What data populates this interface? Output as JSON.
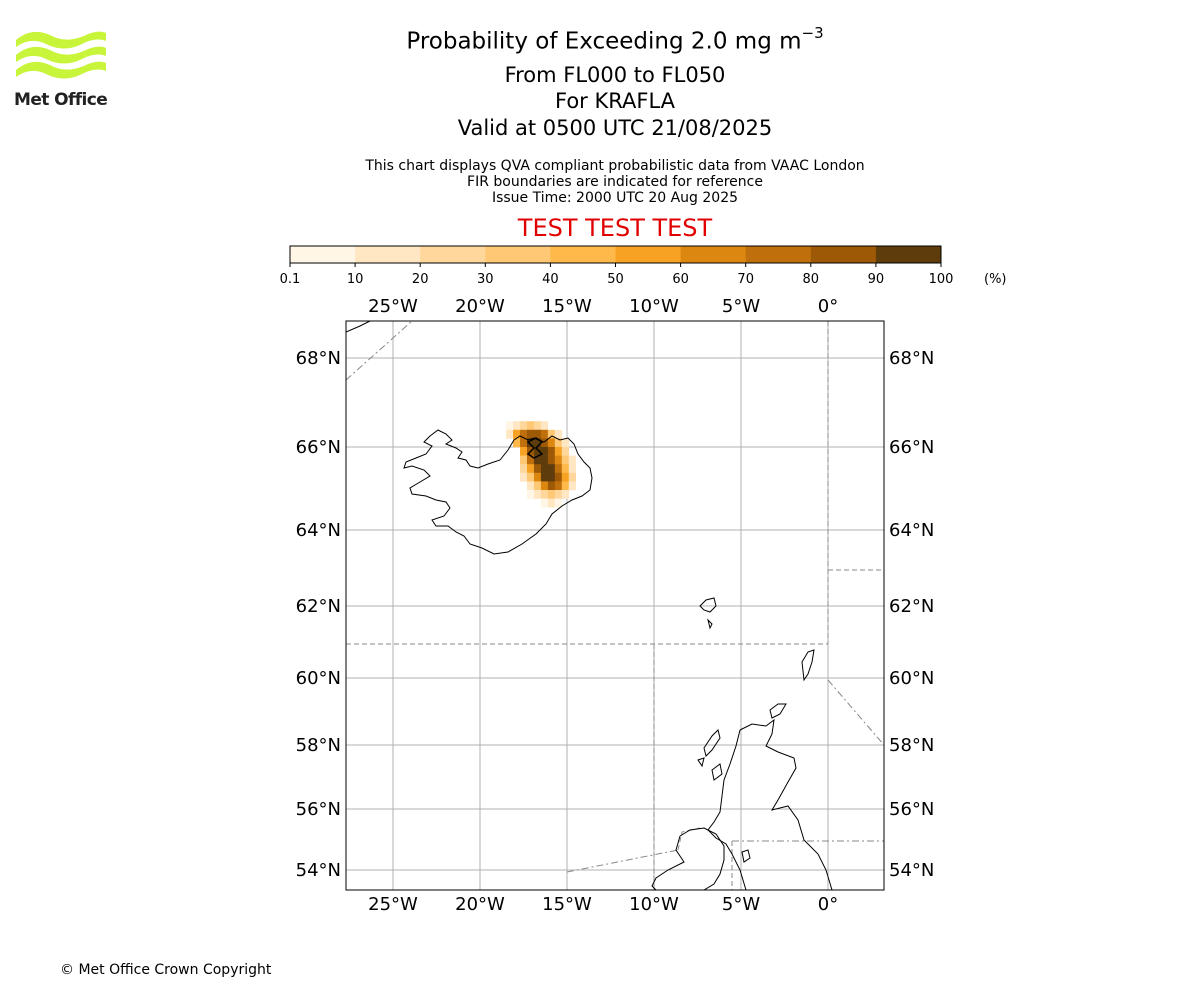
{
  "header": {
    "title_main": "Probability of Exceeding 2.0 mg m",
    "title_exponent": "−3",
    "flight_levels": "From FL000 to FL050",
    "volcano": "For KRAFLA",
    "valid_time": "Valid at 0500 UTC 21/08/2025",
    "subtitle_lines": [
      "This chart displays QVA compliant probabilistic data from VAAC London",
      "FIR boundaries are indicated for reference",
      "Issue Time: 2000 UTC 20 Aug 2025"
    ],
    "test_banner": "TEST TEST TEST"
  },
  "logo": {
    "text": "Met Office",
    "color": "#c8f53a"
  },
  "colorbar": {
    "ticks": [
      "0.1",
      "10",
      "20",
      "30",
      "40",
      "50",
      "60",
      "70",
      "80",
      "90",
      "100"
    ],
    "unit": "(%)",
    "colors": [
      "#fff6e6",
      "#ffe7c3",
      "#ffd79c",
      "#ffc874",
      "#ffb84a",
      "#f7a222",
      "#dc8810",
      "#bf700c",
      "#9e5906",
      "#5e3c0c"
    ]
  },
  "map": {
    "lon_labels": [
      "25°W",
      "20°W",
      "15°W",
      "10°W",
      "5°W",
      "0°"
    ],
    "lat_labels": [
      "68°N",
      "66°N",
      "64°N",
      "62°N",
      "60°N",
      "58°N",
      "56°N",
      "54°N"
    ],
    "gridline_color": "#b0b0b0",
    "coastline_color": "#000000",
    "fir_boundary_color": "#888888",
    "ash_probability_field": [
      {
        "lon": -18.3,
        "lat": 66.5,
        "level": 0
      },
      {
        "lon": -17.9,
        "lat": 66.5,
        "level": 1
      },
      {
        "lon": -17.5,
        "lat": 66.5,
        "level": 2
      },
      {
        "lon": -17.1,
        "lat": 66.5,
        "level": 3
      },
      {
        "lon": -16.7,
        "lat": 66.5,
        "level": 2
      },
      {
        "lon": -16.3,
        "lat": 66.5,
        "level": 1
      },
      {
        "lon": -18.3,
        "lat": 66.3,
        "level": 1
      },
      {
        "lon": -17.9,
        "lat": 66.3,
        "level": 5
      },
      {
        "lon": -17.5,
        "lat": 66.3,
        "level": 7
      },
      {
        "lon": -17.1,
        "lat": 66.3,
        "level": 8
      },
      {
        "lon": -16.7,
        "lat": 66.3,
        "level": 8
      },
      {
        "lon": -16.3,
        "lat": 66.3,
        "level": 7
      },
      {
        "lon": -15.9,
        "lat": 66.3,
        "level": 3
      },
      {
        "lon": -15.5,
        "lat": 66.3,
        "level": 1
      },
      {
        "lon": -17.9,
        "lat": 66.1,
        "level": 4
      },
      {
        "lon": -17.5,
        "lat": 66.1,
        "level": 7
      },
      {
        "lon": -17.1,
        "lat": 66.1,
        "level": 9
      },
      {
        "lon": -16.7,
        "lat": 66.1,
        "level": 9
      },
      {
        "lon": -16.3,
        "lat": 66.1,
        "level": 8
      },
      {
        "lon": -15.9,
        "lat": 66.1,
        "level": 6
      },
      {
        "lon": -15.5,
        "lat": 66.1,
        "level": 3
      },
      {
        "lon": -15.1,
        "lat": 66.1,
        "level": 1
      },
      {
        "lon": -17.5,
        "lat": 65.9,
        "level": 5
      },
      {
        "lon": -17.1,
        "lat": 65.9,
        "level": 8
      },
      {
        "lon": -16.7,
        "lat": 65.9,
        "level": 9
      },
      {
        "lon": -16.3,
        "lat": 65.9,
        "level": 9
      },
      {
        "lon": -15.9,
        "lat": 65.9,
        "level": 8
      },
      {
        "lon": -15.5,
        "lat": 65.9,
        "level": 5
      },
      {
        "lon": -15.1,
        "lat": 65.9,
        "level": 2
      },
      {
        "lon": -17.5,
        "lat": 65.7,
        "level": 3
      },
      {
        "lon": -17.1,
        "lat": 65.7,
        "level": 7
      },
      {
        "lon": -16.7,
        "lat": 65.7,
        "level": 9
      },
      {
        "lon": -16.3,
        "lat": 65.7,
        "level": 9
      },
      {
        "lon": -15.9,
        "lat": 65.7,
        "level": 8
      },
      {
        "lon": -15.5,
        "lat": 65.7,
        "level": 6
      },
      {
        "lon": -15.1,
        "lat": 65.7,
        "level": 3
      },
      {
        "lon": -14.7,
        "lat": 65.7,
        "level": 1
      },
      {
        "lon": -17.5,
        "lat": 65.5,
        "level": 2
      },
      {
        "lon": -17.1,
        "lat": 65.5,
        "level": 5
      },
      {
        "lon": -16.7,
        "lat": 65.5,
        "level": 8
      },
      {
        "lon": -16.3,
        "lat": 65.5,
        "level": 9
      },
      {
        "lon": -15.9,
        "lat": 65.5,
        "level": 9
      },
      {
        "lon": -15.5,
        "lat": 65.5,
        "level": 7
      },
      {
        "lon": -15.1,
        "lat": 65.5,
        "level": 4
      },
      {
        "lon": -14.7,
        "lat": 65.5,
        "level": 1
      },
      {
        "lon": -17.5,
        "lat": 65.3,
        "level": 1
      },
      {
        "lon": -17.1,
        "lat": 65.3,
        "level": 3
      },
      {
        "lon": -16.7,
        "lat": 65.3,
        "level": 6
      },
      {
        "lon": -16.3,
        "lat": 65.3,
        "level": 9
      },
      {
        "lon": -15.9,
        "lat": 65.3,
        "level": 9
      },
      {
        "lon": -15.5,
        "lat": 65.3,
        "level": 8
      },
      {
        "lon": -15.1,
        "lat": 65.3,
        "level": 5
      },
      {
        "lon": -14.7,
        "lat": 65.3,
        "level": 2
      },
      {
        "lon": -17.1,
        "lat": 65.1,
        "level": 1
      },
      {
        "lon": -16.7,
        "lat": 65.1,
        "level": 3
      },
      {
        "lon": -16.3,
        "lat": 65.1,
        "level": 6
      },
      {
        "lon": -15.9,
        "lat": 65.1,
        "level": 8
      },
      {
        "lon": -15.5,
        "lat": 65.1,
        "level": 7
      },
      {
        "lon": -15.1,
        "lat": 65.1,
        "level": 4
      },
      {
        "lon": -14.7,
        "lat": 65.1,
        "level": 1
      },
      {
        "lon": -17.1,
        "lat": 64.9,
        "level": 0
      },
      {
        "lon": -16.7,
        "lat": 64.9,
        "level": 1
      },
      {
        "lon": -16.3,
        "lat": 64.9,
        "level": 2
      },
      {
        "lon": -15.9,
        "lat": 64.9,
        "level": 3
      },
      {
        "lon": -15.5,
        "lat": 64.9,
        "level": 2
      },
      {
        "lon": -15.1,
        "lat": 64.9,
        "level": 1
      },
      {
        "lon": -16.3,
        "lat": 64.7,
        "level": 0
      },
      {
        "lon": -15.9,
        "lat": 64.7,
        "level": 1
      },
      {
        "lon": -15.5,
        "lat": 64.7,
        "level": 0
      }
    ]
  },
  "footer": {
    "copyright": "© Met Office Crown Copyright"
  }
}
